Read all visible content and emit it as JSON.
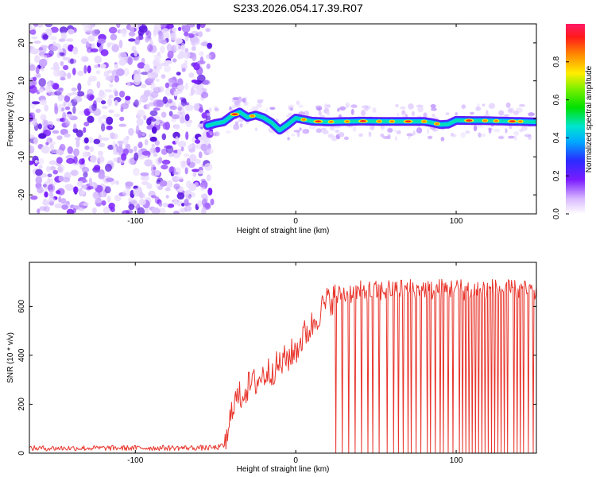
{
  "page_title": "S233.2026.054.17.39.R07",
  "chart_data": [
    {
      "type": "heatmap",
      "title": "S233.2026.054.17.39.R07",
      "xlabel": "Height of straight line (km)",
      "ylabel": "Frequency (Hz)",
      "xlim": [
        -166,
        150
      ],
      "ylim": [
        -25,
        25
      ],
      "xticks": [
        -100,
        0,
        100
      ],
      "yticks": [
        -20,
        -10,
        0,
        10,
        20
      ],
      "noise_region_x": [
        -166,
        -52
      ],
      "signal_start_x": -55,
      "ridge": {
        "x": [
          -55,
          -50,
          -45,
          -40,
          -35,
          -30,
          -25,
          -20,
          -15,
          -10,
          -5,
          0,
          10,
          20,
          40,
          60,
          80,
          85,
          90,
          95,
          100,
          120,
          150
        ],
        "freq": [
          -1.8,
          -1.2,
          -0.8,
          0.8,
          1.8,
          0.4,
          1.0,
          0.3,
          -1.0,
          -3.0,
          -1.5,
          0.2,
          -0.6,
          -0.8,
          -0.6,
          -0.7,
          -0.7,
          -1.0,
          -1.5,
          -1.4,
          -0.4,
          -0.5,
          -0.8
        ]
      },
      "colorbar": {
        "label": "Normalized spectral amplitude",
        "ticks": [
          "0.0",
          "0.2",
          "0.4",
          "0.6",
          "0.8"
        ],
        "range": [
          0,
          1
        ]
      }
    },
    {
      "type": "line",
      "xlabel": "Height of straight line (km)",
      "ylabel": "SNR (10 * v/v)",
      "xlim": [
        -166,
        150
      ],
      "ylim": [
        0,
        780
      ],
      "xticks": [
        -100,
        0,
        100
      ],
      "yticks": [
        0,
        200,
        400,
        600
      ],
      "series": [
        {
          "name": "SNR",
          "color": "#e8352c",
          "envelope": {
            "x": [
              -166,
              -50,
              -45,
              -42,
              -40,
              -35,
              -30,
              -25,
              -20,
              -15,
              -10,
              -5,
              0,
              5,
              10,
              15,
              20,
              25,
              30,
              40,
              50,
              60,
              80,
              100,
              120,
              150
            ],
            "y": [
              20,
              22,
              30,
              60,
              200,
              230,
              270,
              290,
              320,
              340,
              360,
              390,
              420,
              480,
              520,
              580,
              620,
              640,
              650,
              660,
              660,
              670,
              670,
              670,
              670,
              660
            ]
          },
          "dropouts_x": [
            25,
            29,
            33,
            37,
            41,
            45,
            48,
            52,
            57,
            61,
            64,
            67,
            70,
            72,
            75,
            78,
            82,
            84,
            87,
            90,
            92,
            95,
            98,
            102,
            104,
            106,
            108,
            110,
            112,
            114,
            116,
            118,
            120,
            122,
            124,
            126,
            128,
            130,
            132,
            136,
            138,
            140,
            142,
            145,
            148
          ]
        }
      ]
    }
  ]
}
